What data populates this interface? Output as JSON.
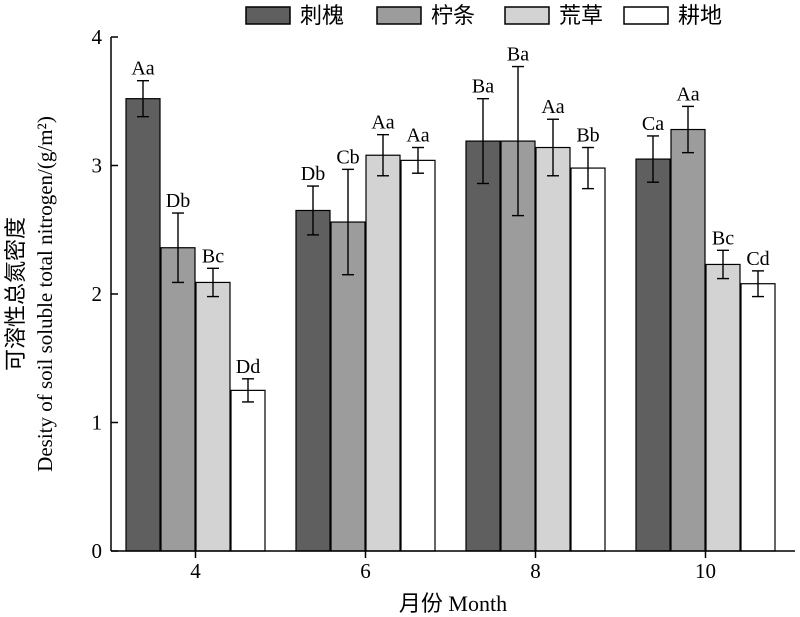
{
  "chart_data": {
    "type": "bar",
    "xlabel": "月份 Month",
    "ylabel_cn": "可溶性总氮密度",
    "ylabel_en": "Desity of soil soluble total nitrogen/(g/m²)",
    "categories": [
      "4",
      "6",
      "8",
      "10"
    ],
    "ylim": [
      0,
      4
    ],
    "yticks": [
      0,
      1,
      2,
      3,
      4
    ],
    "legend_position": "top",
    "grid": false,
    "series": [
      {
        "name": "刺槐",
        "color": "#5f5f5f",
        "values": [
          3.52,
          2.65,
          3.19,
          3.05
        ],
        "errors": [
          0.14,
          0.19,
          0.33,
          0.18
        ],
        "labels": [
          "Aa",
          "Db",
          "Ba",
          "Ca"
        ]
      },
      {
        "name": "柠条",
        "color": "#9c9c9c",
        "values": [
          2.36,
          2.56,
          3.19,
          3.28
        ],
        "errors": [
          0.27,
          0.41,
          0.58,
          0.18
        ],
        "labels": [
          "Db",
          "Cb",
          "Ba",
          "Aa"
        ]
      },
      {
        "name": "荒草",
        "color": "#d3d3d3",
        "values": [
          2.09,
          3.08,
          3.14,
          2.23
        ],
        "errors": [
          0.11,
          0.16,
          0.22,
          0.11
        ],
        "labels": [
          "Bc",
          "Aa",
          "Aa",
          "Bc"
        ]
      },
      {
        "name": "耕地",
        "color": "#ffffff",
        "values": [
          1.25,
          3.04,
          2.98,
          2.08
        ],
        "errors": [
          0.09,
          0.1,
          0.16,
          0.1
        ],
        "labels": [
          "Dd",
          "Aa",
          "Bb",
          "Cd"
        ]
      }
    ]
  }
}
